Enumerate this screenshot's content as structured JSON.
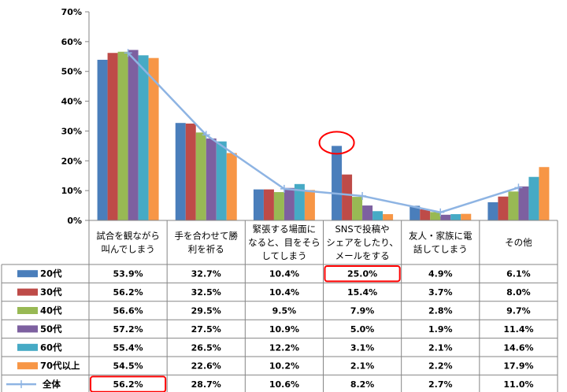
{
  "chart_data": {
    "type": "bar",
    "title": "",
    "xlabel": "",
    "ylabel": "",
    "ylim": [
      0,
      70
    ],
    "yticks": [
      "0%",
      "10%",
      "20%",
      "30%",
      "40%",
      "50%",
      "60%",
      "70%"
    ],
    "categories": [
      [
        "試合を観ながら",
        "叫んでしまう"
      ],
      [
        "手を合わせて勝",
        "利を祈る"
      ],
      [
        "緊張する場面に",
        "なると、目をそら",
        "してしまう"
      ],
      [
        "SNSで投稿や",
        "シェアをしたり、",
        "メールをする"
      ],
      [
        "友人・家族に電",
        "話してしまう"
      ],
      [
        "その他"
      ]
    ],
    "series": [
      {
        "name": "20代",
        "color": "#4A7EBB",
        "values": [
          53.9,
          32.7,
          10.4,
          25.0,
          4.9,
          6.1
        ],
        "labels": [
          "53.9%",
          "32.7%",
          "10.4%",
          "25.0%",
          "4.9%",
          "6.1%"
        ]
      },
      {
        "name": "30代",
        "color": "#BE4B48",
        "values": [
          56.2,
          32.5,
          10.4,
          15.4,
          3.7,
          8.0
        ],
        "labels": [
          "56.2%",
          "32.5%",
          "10.4%",
          "15.4%",
          "3.7%",
          "8.0%"
        ]
      },
      {
        "name": "40代",
        "color": "#98B954",
        "values": [
          56.6,
          29.5,
          9.5,
          7.9,
          2.8,
          9.7
        ],
        "labels": [
          "56.6%",
          "29.5%",
          "9.5%",
          "7.9%",
          "2.8%",
          "9.7%"
        ]
      },
      {
        "name": "50代",
        "color": "#7D60A0",
        "values": [
          57.2,
          27.5,
          10.9,
          5.0,
          1.9,
          11.4
        ],
        "labels": [
          "57.2%",
          "27.5%",
          "10.9%",
          "5.0%",
          "1.9%",
          "11.4%"
        ]
      },
      {
        "name": "60代",
        "color": "#46AAC5",
        "values": [
          55.4,
          26.5,
          12.2,
          3.1,
          2.1,
          14.6
        ],
        "labels": [
          "55.4%",
          "26.5%",
          "12.2%",
          "3.1%",
          "2.1%",
          "14.6%"
        ]
      },
      {
        "name": "70代以上",
        "color": "#F79646",
        "values": [
          54.5,
          22.6,
          10.2,
          2.1,
          2.2,
          17.9
        ],
        "labels": [
          "54.5%",
          "22.6%",
          "10.2%",
          "2.1%",
          "2.2%",
          "17.9%"
        ]
      }
    ],
    "line_series": {
      "name": "全体",
      "color": "#8EB4E3",
      "values": [
        56.2,
        28.7,
        10.6,
        8.2,
        2.7,
        11.0
      ],
      "labels": [
        "56.2%",
        "28.7%",
        "10.6%",
        "8.2%",
        "2.7%",
        "11.0%"
      ]
    },
    "grid": false,
    "legend": "data-table",
    "annotations": [
      {
        "type": "circle-highlight",
        "series": 0,
        "category": 3,
        "color": "#FF0000"
      },
      {
        "type": "cell-highlight",
        "row": "20代",
        "category": 3,
        "color": "#FF0000"
      },
      {
        "type": "cell-highlight",
        "row": "全体",
        "category": 0,
        "color": "#FF0000"
      }
    ]
  }
}
